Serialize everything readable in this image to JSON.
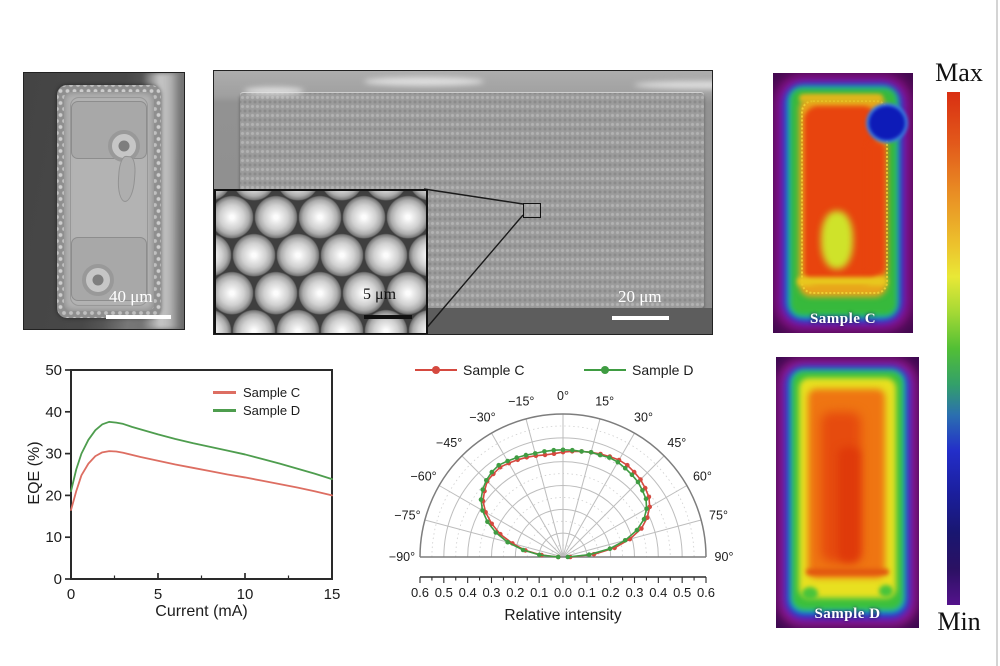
{
  "sem_device_panel": {
    "scale_bar": "40 μm"
  },
  "sem_array_panel": {
    "scale_bar": "20 μm",
    "inset_scale_bar": "5 μm"
  },
  "thermal_panels": [
    {
      "label": "Sample C"
    },
    {
      "label": "Sample D"
    }
  ],
  "colorbar": {
    "max_label": "Max",
    "min_label": "Min",
    "gradient_top_to_bottom": [
      "#d92f12",
      "#e98f24",
      "#e9e836",
      "#52bf35",
      "#232ec9",
      "#191670",
      "#54128c"
    ]
  },
  "chart_data": [
    {
      "id": "eqe-vs-current",
      "type": "line",
      "xlabel": "Current (mA)",
      "ylabel": "EQE (%)",
      "xlim": [
        0,
        15
      ],
      "ylim": [
        0,
        50
      ],
      "xticks": [
        0,
        5,
        10,
        15
      ],
      "xticks_minor": [
        2.5,
        7.5,
        12.5
      ],
      "yticks": [
        0,
        10,
        20,
        30,
        40,
        50
      ],
      "grid": false,
      "legend_position": "top-right-inside",
      "x": [
        0,
        0.3,
        0.6,
        1,
        1.4,
        1.8,
        2.2,
        2.6,
        3,
        3.5,
        4,
        5,
        6,
        7,
        8,
        9,
        10,
        11,
        12,
        13,
        14,
        15
      ],
      "series": [
        {
          "name": "Sample C",
          "color": "#dd6e62",
          "values": [
            16.5,
            21.0,
            24.8,
            27.6,
            29.4,
            30.3,
            30.6,
            30.5,
            30.2,
            29.7,
            29.2,
            28.3,
            27.4,
            26.6,
            25.8,
            25.0,
            24.3,
            23.5,
            22.7,
            21.9,
            21.0,
            20.0
          ]
        },
        {
          "name": "Sample D",
          "color": "#4e9d4e",
          "values": [
            21.0,
            26.2,
            30.0,
            33.3,
            35.6,
            37.0,
            37.6,
            37.4,
            37.1,
            36.4,
            35.8,
            34.6,
            33.5,
            32.5,
            31.6,
            30.7,
            29.8,
            28.7,
            27.6,
            26.4,
            25.2,
            23.9
          ]
        }
      ]
    },
    {
      "id": "radiation-pattern",
      "type": "polar-line",
      "xlabel": "Relative intensity",
      "rmax": 0.6,
      "angle_ticks_deg": [
        -90,
        -75,
        -60,
        -45,
        -30,
        -15,
        0,
        15,
        30,
        45,
        60,
        75,
        90
      ],
      "angle_labels": [
        "−90°",
        "−75°",
        "−60°",
        "−45°",
        "−30°",
        "−15°",
        "0°",
        "15°",
        "30°",
        "45°",
        "60°",
        "75°",
        "90°"
      ],
      "radial_labels": [
        "0.6",
        "0.5",
        "0.4",
        "0.3",
        "0.2",
        "0.1",
        "0.0",
        "0.1",
        "0.2",
        "0.3",
        "0.4",
        "0.5",
        "0.6"
      ],
      "angles_deg": [
        -90,
        -85,
        -80,
        -75,
        -70,
        -65,
        -60,
        -55,
        -50,
        -45,
        -40,
        -35,
        -30,
        -25,
        -20,
        -15,
        -10,
        -5,
        0,
        5,
        10,
        15,
        20,
        25,
        30,
        35,
        40,
        45,
        50,
        55,
        60,
        65,
        70,
        75,
        80,
        85,
        90
      ],
      "series": [
        {
          "name": "Sample C",
          "color": "#d5493f",
          "values": [
            0.02,
            0.09,
            0.16,
            0.22,
            0.28,
            0.33,
            0.375,
            0.41,
            0.43,
            0.45,
            0.455,
            0.46,
            0.455,
            0.45,
            0.445,
            0.44,
            0.435,
            0.435,
            0.44,
            0.445,
            0.45,
            0.455,
            0.46,
            0.465,
            0.47,
            0.47,
            0.465,
            0.46,
            0.45,
            0.44,
            0.42,
            0.39,
            0.35,
            0.29,
            0.22,
            0.13,
            0.03
          ]
        },
        {
          "name": "Sample D",
          "color": "#3f9c42",
          "values": [
            0.02,
            0.1,
            0.17,
            0.24,
            0.3,
            0.35,
            0.39,
            0.42,
            0.44,
            0.455,
            0.465,
            0.47,
            0.465,
            0.46,
            0.455,
            0.45,
            0.45,
            0.45,
            0.45,
            0.45,
            0.45,
            0.455,
            0.455,
            0.46,
            0.46,
            0.455,
            0.45,
            0.445,
            0.435,
            0.425,
            0.405,
            0.375,
            0.33,
            0.27,
            0.2,
            0.11,
            0.02
          ]
        }
      ]
    }
  ]
}
